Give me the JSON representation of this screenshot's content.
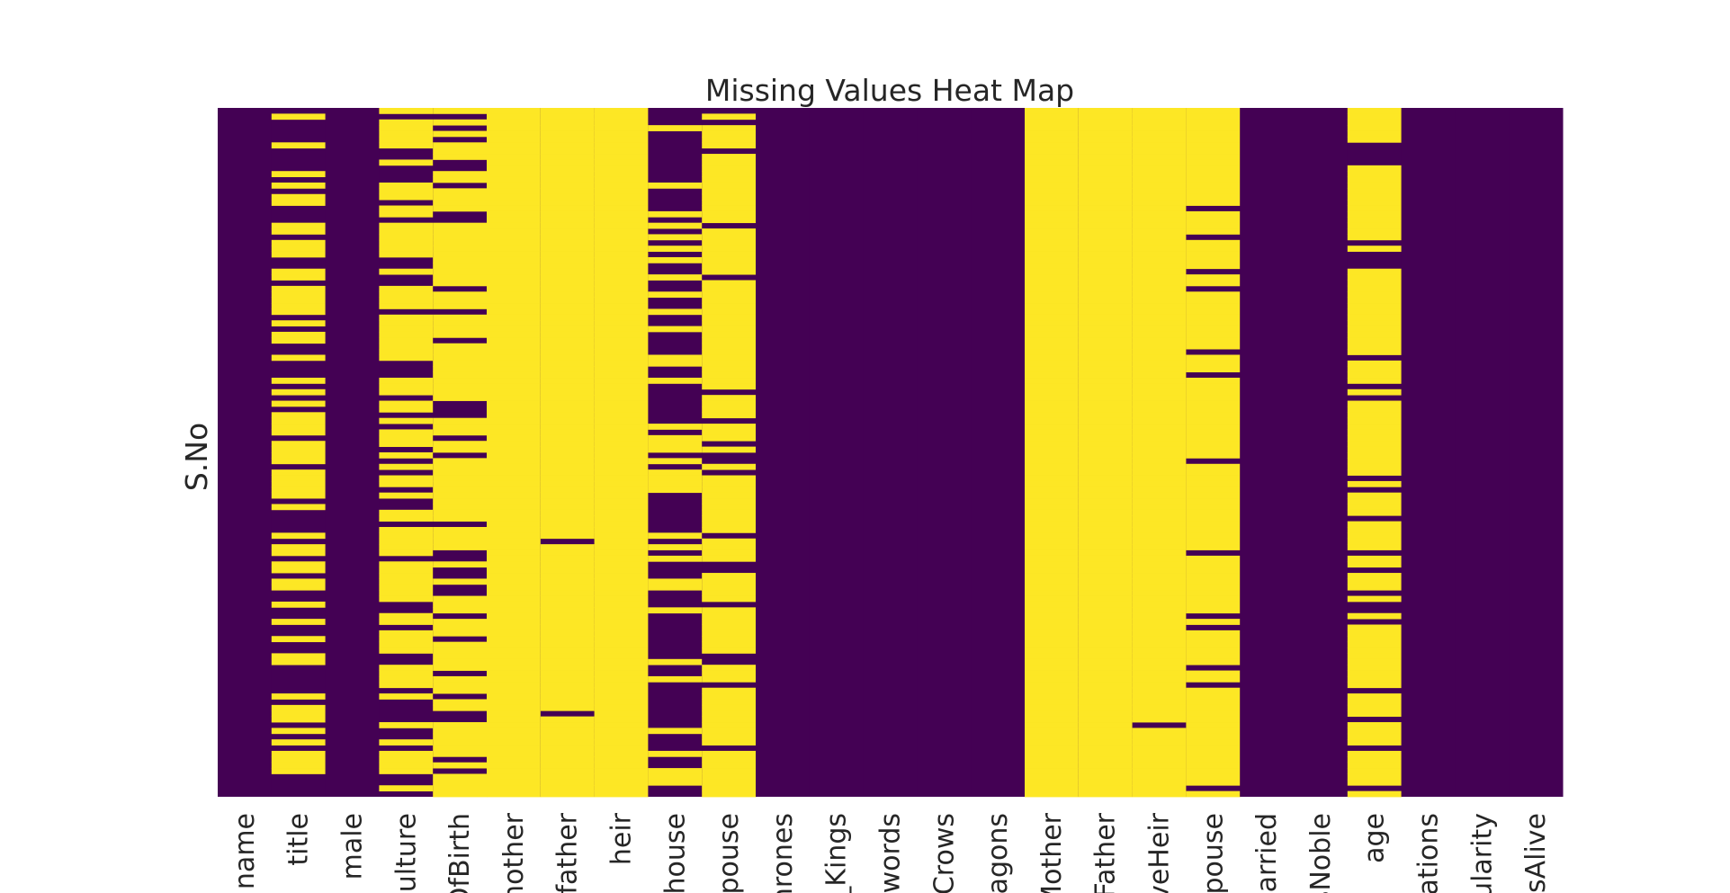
{
  "chart_data": {
    "type": "heatmap",
    "title": "Missing Values Heat Map",
    "ylabel": "S.No",
    "xlabel": "",
    "colorbar": false,
    "colors": {
      "present": "#440154",
      "missing": "#fde725"
    },
    "columns": [
      {
        "label": "name",
        "missing_fraction": 0.0
      },
      {
        "label": "title",
        "missing_fraction": 0.52
      },
      {
        "label": "male",
        "missing_fraction": 0.0
      },
      {
        "label": "culture",
        "missing_fraction": 0.65
      },
      {
        "label": "OfBirth",
        "missing_fraction": 0.78
      },
      {
        "label": "mother",
        "missing_fraction": 0.99
      },
      {
        "label": "father",
        "missing_fraction": 0.99
      },
      {
        "label": "heir",
        "missing_fraction": 0.99
      },
      {
        "label": "house",
        "missing_fraction": 0.22
      },
      {
        "label": "spouse",
        "missing_fraction": 0.86
      },
      {
        "label": "hrones",
        "missing_fraction": 0.0
      },
      {
        "label": "_Kings",
        "missing_fraction": 0.0
      },
      {
        "label": "Swords",
        "missing_fraction": 0.0
      },
      {
        "label": "_Crows",
        "missing_fraction": 0.0
      },
      {
        "label": "ragons",
        "missing_fraction": 0.0
      },
      {
        "label": "Mother",
        "missing_fraction": 0.99
      },
      {
        "label": "eFather",
        "missing_fraction": 0.99
      },
      {
        "label": "iveHeir",
        "missing_fraction": 0.99
      },
      {
        "label": "Spouse",
        "missing_fraction": 0.86
      },
      {
        "label": "Married",
        "missing_fraction": 0.0
      },
      {
        "label": "sNoble",
        "missing_fraction": 0.0
      },
      {
        "label": "age",
        "missing_fraction": 0.78
      },
      {
        "label": "elations",
        "missing_fraction": 0.0
      },
      {
        "label": "oularity",
        "missing_fraction": 0.0
      },
      {
        "label": "isAlive",
        "missing_fraction": 0.0
      }
    ]
  }
}
